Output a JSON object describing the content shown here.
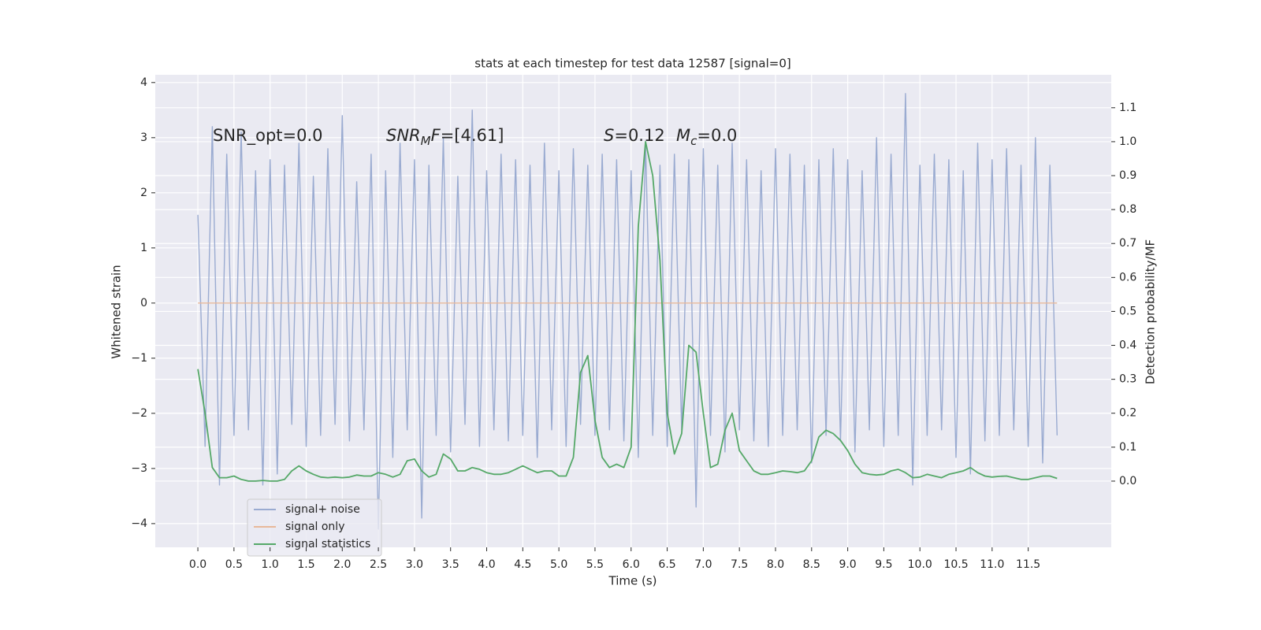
{
  "chart_data": {
    "type": "line",
    "title": "stats at each timestep for test data 12587 [signal=0]",
    "xlabel": "Time (s)",
    "ylabel": "Whitened strain",
    "y2label": "Detection probability/MF",
    "x": [
      0.0,
      0.1,
      0.2,
      0.3,
      0.4,
      0.5,
      0.6,
      0.7,
      0.8,
      0.9,
      1.0,
      1.1,
      1.2,
      1.3,
      1.4,
      1.5,
      1.6,
      1.7,
      1.8,
      1.9,
      2.0,
      2.1,
      2.2,
      2.3,
      2.4,
      2.5,
      2.6,
      2.7,
      2.8,
      2.9,
      3.0,
      3.1,
      3.2,
      3.3,
      3.4,
      3.5,
      3.6,
      3.7,
      3.8,
      3.9,
      4.0,
      4.1,
      4.2,
      4.3,
      4.4,
      4.5,
      4.6,
      4.7,
      4.8,
      4.9,
      5.0,
      5.1,
      5.2,
      5.3,
      5.4,
      5.5,
      5.6,
      5.7,
      5.8,
      5.9,
      6.0,
      6.1,
      6.2,
      6.3,
      6.4,
      6.5,
      6.6,
      6.7,
      6.8,
      6.9,
      7.0,
      7.1,
      7.2,
      7.3,
      7.4,
      7.5,
      7.6,
      7.7,
      7.8,
      7.9,
      8.0,
      8.1,
      8.2,
      8.3,
      8.4,
      8.5,
      8.6,
      8.7,
      8.8,
      8.9,
      9.0,
      9.1,
      9.2,
      9.3,
      9.4,
      9.5,
      9.6,
      9.7,
      9.8,
      9.9,
      10.0,
      10.1,
      10.2,
      10.3,
      10.4,
      10.5,
      10.6,
      10.7,
      10.8,
      10.9,
      11.0,
      11.1,
      11.2,
      11.3,
      11.4,
      11.5,
      11.6,
      11.7,
      11.8,
      11.9
    ],
    "series": [
      {
        "name": "signal+ noise",
        "color": "#9aabd1",
        "values": [
          1.6,
          -2.6,
          3.2,
          -3.3,
          2.7,
          -2.4,
          3.1,
          -2.3,
          2.4,
          -3.3,
          2.6,
          -3.1,
          2.5,
          -2.2,
          2.9,
          -2.6,
          2.3,
          -2.4,
          2.8,
          -2.2,
          3.4,
          -2.5,
          2.2,
          -2.3,
          2.7,
          -4.1,
          2.4,
          -2.8,
          2.9,
          -2.3,
          2.6,
          -3.9,
          2.5,
          -2.4,
          3.0,
          -2.7,
          2.3,
          -2.2,
          3.5,
          -2.6,
          2.4,
          -2.3,
          2.7,
          -2.5,
          2.6,
          -2.4,
          2.5,
          -2.8,
          2.9,
          -2.3,
          2.4,
          -2.6,
          2.8,
          -2.2,
          2.5,
          -2.4,
          2.7,
          -2.3,
          2.6,
          -2.5,
          2.4,
          -2.8,
          2.9,
          -2.4,
          2.5,
          -2.6,
          2.7,
          -2.3,
          2.6,
          -3.7,
          2.8,
          -2.4,
          2.5,
          -2.7,
          2.9,
          -2.3,
          2.6,
          -2.5,
          2.4,
          -2.6,
          2.8,
          -2.4,
          2.7,
          -2.3,
          2.5,
          -2.9,
          2.6,
          -2.4,
          2.8,
          -2.5,
          2.6,
          -2.7,
          2.4,
          -2.3,
          3.0,
          -2.6,
          2.7,
          -2.4,
          3.8,
          -3.3,
          2.5,
          -2.4,
          2.7,
          -2.3,
          2.6,
          -2.8,
          2.4,
          -3.1,
          2.9,
          -2.5,
          2.6,
          -2.4,
          2.8,
          -2.3,
          2.5,
          -2.6,
          3.0,
          -2.9,
          2.5,
          -2.4
        ]
      },
      {
        "name": "signal only",
        "color": "#e8b89a",
        "values": [
          0,
          0,
          0,
          0,
          0,
          0,
          0,
          0,
          0,
          0,
          0,
          0,
          0,
          0,
          0,
          0,
          0,
          0,
          0,
          0,
          0,
          0,
          0,
          0,
          0,
          0,
          0,
          0,
          0,
          0,
          0,
          0,
          0,
          0,
          0,
          0,
          0,
          0,
          0,
          0,
          0,
          0,
          0,
          0,
          0,
          0,
          0,
          0,
          0,
          0,
          0,
          0,
          0,
          0,
          0,
          0,
          0,
          0,
          0,
          0,
          0,
          0,
          0,
          0,
          0,
          0,
          0,
          0,
          0,
          0,
          0,
          0,
          0,
          0,
          0,
          0,
          0,
          0,
          0,
          0,
          0,
          0,
          0,
          0,
          0,
          0,
          0,
          0,
          0,
          0,
          0,
          0,
          0,
          0,
          0,
          0,
          0,
          0,
          0,
          0,
          0,
          0,
          0,
          0,
          0,
          0,
          0,
          0,
          0,
          0,
          0,
          0,
          0,
          0,
          0,
          0,
          0,
          0,
          0,
          0
        ]
      },
      {
        "name": "signal statistics",
        "color": "#55a868",
        "axis": "y2",
        "values": [
          0.33,
          0.2,
          0.04,
          0.01,
          0.01,
          0.015,
          0.005,
          0.0,
          0.0,
          0.002,
          0.0,
          0.0,
          0.005,
          0.03,
          0.045,
          0.03,
          0.02,
          0.012,
          0.01,
          0.012,
          0.01,
          0.012,
          0.018,
          0.015,
          0.015,
          0.025,
          0.02,
          0.012,
          0.02,
          0.06,
          0.065,
          0.03,
          0.012,
          0.02,
          0.08,
          0.065,
          0.03,
          0.03,
          0.04,
          0.035,
          0.025,
          0.02,
          0.02,
          0.025,
          0.035,
          0.045,
          0.035,
          0.025,
          0.03,
          0.03,
          0.015,
          0.015,
          0.07,
          0.32,
          0.37,
          0.18,
          0.07,
          0.04,
          0.05,
          0.04,
          0.1,
          0.75,
          1.0,
          0.9,
          0.65,
          0.2,
          0.08,
          0.14,
          0.4,
          0.38,
          0.2,
          0.04,
          0.05,
          0.15,
          0.2,
          0.09,
          0.06,
          0.03,
          0.02,
          0.02,
          0.025,
          0.03,
          0.028,
          0.025,
          0.03,
          0.06,
          0.13,
          0.15,
          0.14,
          0.12,
          0.09,
          0.05,
          0.025,
          0.02,
          0.018,
          0.02,
          0.03,
          0.035,
          0.025,
          0.01,
          0.012,
          0.02,
          0.015,
          0.01,
          0.02,
          0.025,
          0.03,
          0.04,
          0.025,
          0.015,
          0.012,
          0.014,
          0.015,
          0.01,
          0.005,
          0.005,
          0.01,
          0.015,
          0.015,
          0.008
        ]
      }
    ],
    "xlim": [
      -0.59,
      12.65
    ],
    "ylim": [
      -4.43,
      4.14
    ],
    "y2lim": [
      -0.195,
      1.197
    ],
    "xticks": [
      {
        "value": 0,
        "label": "0.0"
      },
      0.5,
      {
        "value": 1,
        "label": "1.0"
      },
      1.5,
      {
        "value": 2,
        "label": "2.0"
      },
      2.5,
      {
        "value": 3,
        "label": "3.0"
      },
      3.5,
      {
        "value": 4,
        "label": "4.0"
      },
      4.5,
      {
        "value": 5,
        "label": "5.0"
      },
      5.5,
      {
        "value": 6,
        "label": "6.0"
      },
      6.5,
      {
        "value": 7,
        "label": "7.0"
      },
      7.5,
      {
        "value": 8,
        "label": "8.0"
      },
      8.5,
      {
        "value": 9,
        "label": "9.0"
      },
      9.5,
      {
        "value": 10,
        "label": "10.0"
      },
      10.5,
      {
        "value": 11,
        "label": "11.0"
      },
      11.5
    ],
    "yticks": [
      {
        "value": -4,
        "label": "−4"
      },
      {
        "value": -3,
        "label": "−3"
      },
      {
        "value": -2,
        "label": "−2"
      },
      {
        "value": -1,
        "label": "−1"
      },
      0,
      1,
      2,
      3,
      4
    ],
    "y2ticks": [
      {
        "value": 0,
        "label": "0.0"
      },
      0.1,
      0.2,
      0.3,
      0.4,
      0.5,
      0.6,
      0.7,
      0.8,
      0.9,
      {
        "value": 1,
        "label": "1.0"
      },
      1.1
    ],
    "grid": true,
    "legend": "lower left",
    "annotations": [
      {
        "parts": [
          {
            "text": "SNR_opt=0.0"
          }
        ]
      },
      {
        "parts": [
          {
            "text": "SNR",
            "style": "italic"
          },
          {
            "text": "M",
            "style": "italic-sub"
          },
          {
            "text": "F",
            "style": "italic"
          },
          {
            "text": "=[4.61]"
          }
        ]
      },
      {
        "parts": [
          {
            "text": "S",
            "style": "italic"
          },
          {
            "text": "=0.12"
          }
        ]
      },
      {
        "parts": [
          {
            "text": "M",
            "style": "italic"
          },
          {
            "text": "c",
            "style": "italic-sub"
          },
          {
            "text": "=0.0"
          }
        ]
      }
    ]
  }
}
